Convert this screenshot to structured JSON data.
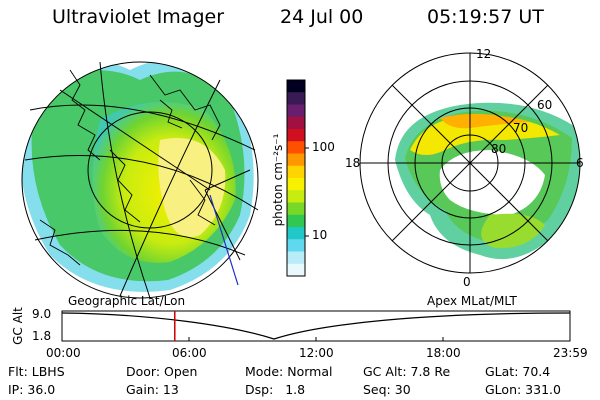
{
  "header": {
    "instrument": "Ultraviolet Imager",
    "date": "24 Jul 00",
    "time": "05:19:57 UT"
  },
  "colorbar": {
    "unit_label": "photon cm⁻²s⁻¹",
    "ticks": [
      "100",
      "10"
    ],
    "colors": [
      "#000020",
      "#3a1a55",
      "#6a1e6e",
      "#a01040",
      "#d01020",
      "#ff5000",
      "#ff9800",
      "#ffd400",
      "#f7f000",
      "#c6ec10",
      "#78d828",
      "#30c850",
      "#20c8c8",
      "#60d8f0",
      "#b8ecf8",
      "#e8f8fc"
    ]
  },
  "polar_plot": {
    "mlt_labels": [
      "12",
      "18",
      "6",
      "0"
    ],
    "lat_labels": [
      "60",
      "70",
      "80"
    ]
  },
  "timeline": {
    "left_label": "Geographic Lat/Lon",
    "right_label": "Apex MLat/MLT",
    "y_axis_label": "GC Alt",
    "y_ticks": [
      "9.0",
      "1.8"
    ],
    "x_ticks": [
      "00:00",
      "06:00",
      "12:00",
      "18:00",
      "23:59"
    ],
    "current_time_fraction": 0.222,
    "marker_color": "#cc0000"
  },
  "info": {
    "row1": {
      "flt": "Flt: LBHS",
      "door": "Door: Open",
      "mode": "Mode: Normal",
      "gc_alt": "GC Alt: 7.8 Re",
      "glat": "GLat: 70.4"
    },
    "row2": {
      "ip": "IP: 36.0",
      "gain": "Gain: 13",
      "dsp": "Dsp:   1.8",
      "seq": "Seq: 30",
      "glon": "GLon: 331.0"
    }
  }
}
